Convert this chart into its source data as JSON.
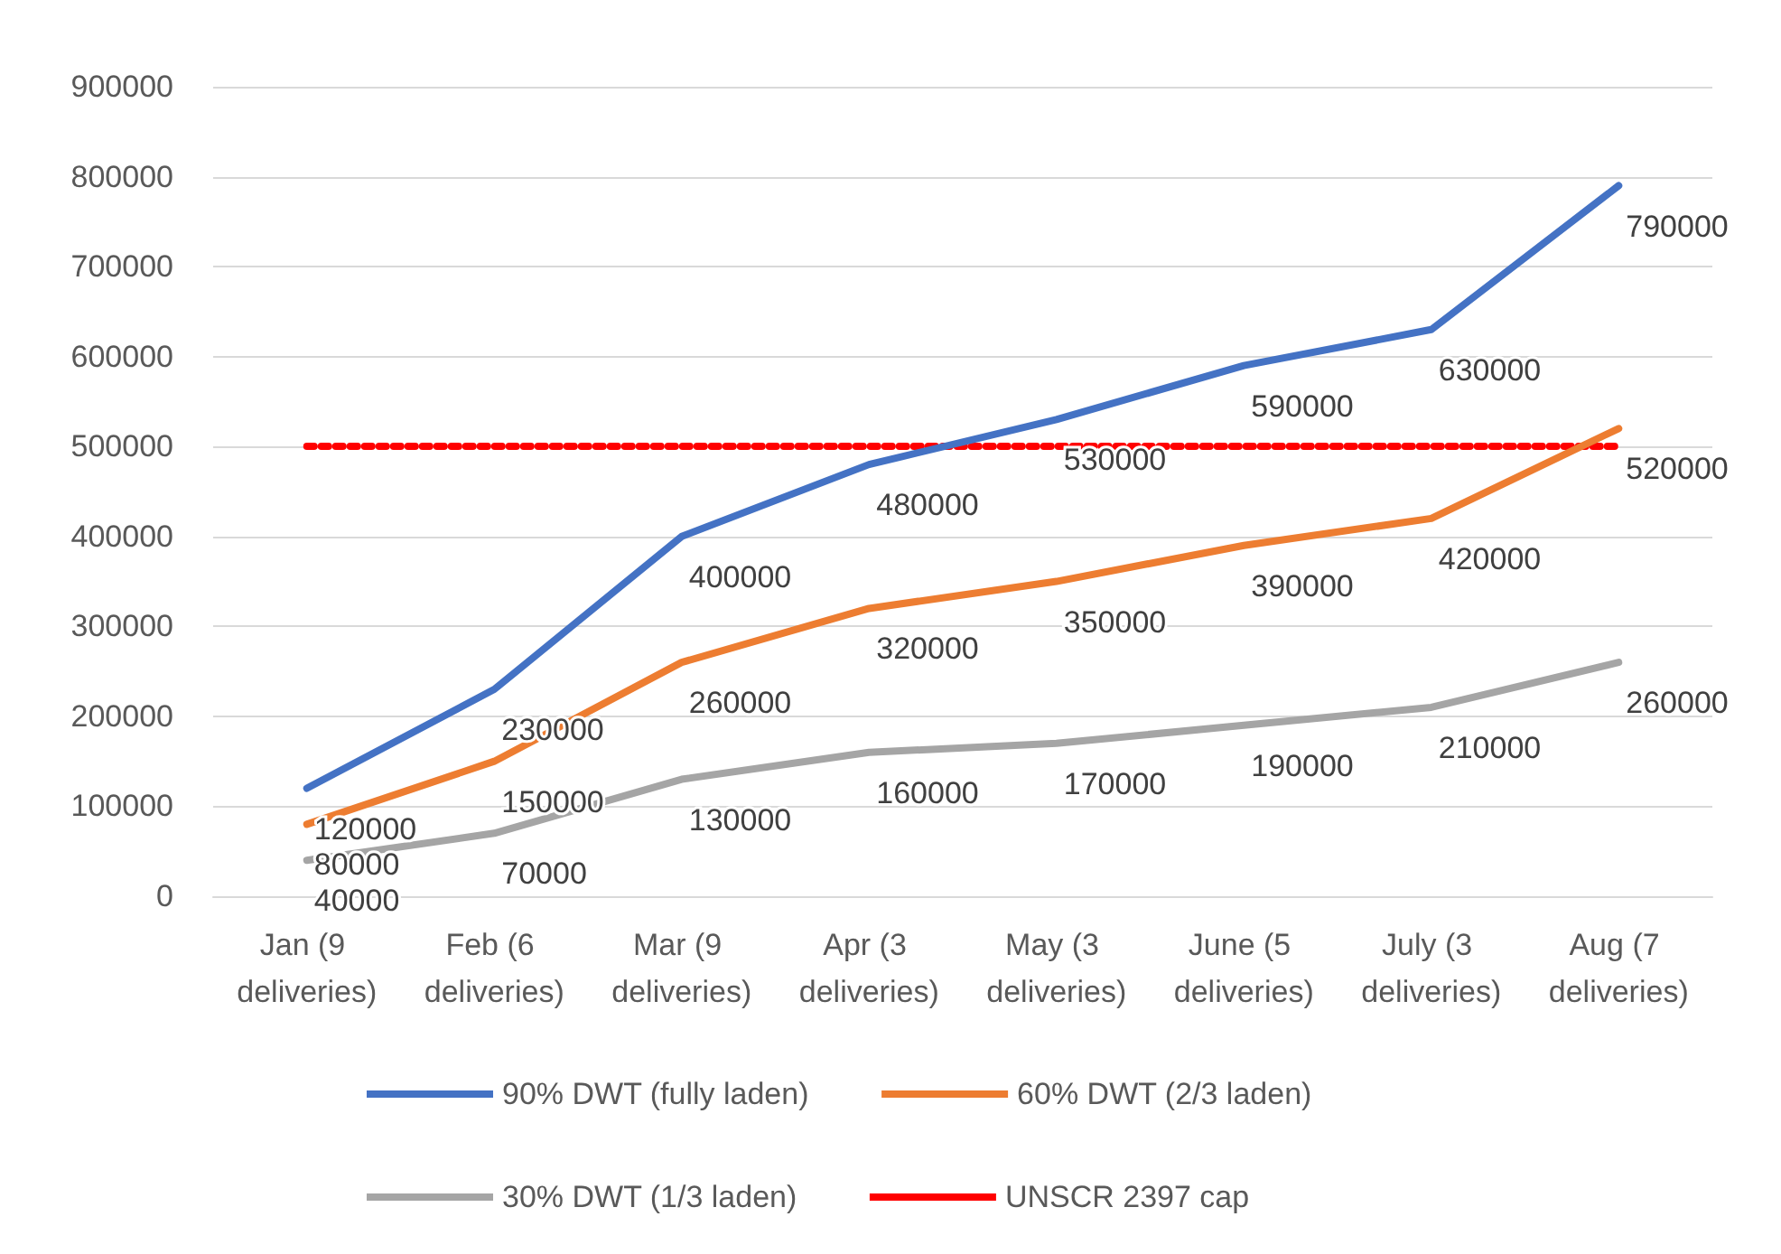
{
  "chart_data": {
    "type": "line",
    "categories": [
      "Jan (9 deliveries)",
      "Feb (6 deliveries)",
      "Mar (9 deliveries)",
      "Apr (3 deliveries)",
      "May (3 deliveries)",
      "June (5 deliveries)",
      "July (3 deliveries)",
      "Aug (7 deliveries)"
    ],
    "series": [
      {
        "name": "90% DWT (fully laden)",
        "color": "#4472c4",
        "values": [
          120000,
          230000,
          400000,
          480000,
          530000,
          590000,
          630000,
          790000
        ]
      },
      {
        "name": "60% DWT (2/3 laden)",
        "color": "#ed7d31",
        "values": [
          80000,
          150000,
          260000,
          320000,
          350000,
          390000,
          420000,
          520000
        ]
      },
      {
        "name": "30% DWT (1/3 laden)",
        "color": "#a5a5a5",
        "values": [
          40000,
          70000,
          130000,
          160000,
          170000,
          190000,
          210000,
          260000
        ]
      }
    ],
    "ref_lines": [
      {
        "axis": "y",
        "value": 500000,
        "label": "UNSCR 2397 cap",
        "color": "#ff0000",
        "line_style": "dotted"
      }
    ],
    "ylim": [
      0,
      900000
    ],
    "yticks": [
      0,
      100000,
      200000,
      300000,
      400000,
      500000,
      600000,
      700000,
      800000,
      900000
    ],
    "grid": "y",
    "legend": "bottom",
    "data_labels": true,
    "marker": "none",
    "line_style": "solid"
  }
}
